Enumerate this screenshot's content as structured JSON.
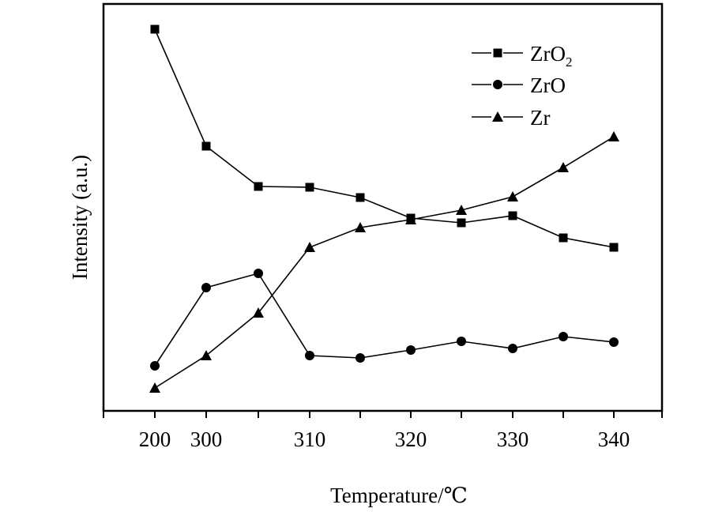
{
  "chart_data": {
    "type": "line",
    "title": "",
    "xlabel": "Temperature/℃",
    "ylabel": "Intensity (a.u.)",
    "categories": [
      "200",
      "300",
      "305",
      "310",
      "315",
      "320",
      "325",
      "330",
      "335",
      "340"
    ],
    "tick_labels": [
      "200",
      "300",
      "",
      "310",
      "",
      "320",
      "",
      "330",
      "",
      "340"
    ],
    "ylim": [
      0,
      103
    ],
    "grid": false,
    "legend_position": "top-right",
    "series": [
      {
        "name": "ZrO",
        "name_sub": "2",
        "marker": "square",
        "values": [
          96.6,
          67.0,
          56.8,
          56.6,
          54.0,
          48.8,
          47.6,
          49.4,
          43.8,
          41.4
        ]
      },
      {
        "name": "ZrO",
        "name_sub": "",
        "marker": "circle",
        "values": [
          11.4,
          31.2,
          34.8,
          14.0,
          13.4,
          15.4,
          17.6,
          15.8,
          18.8,
          17.4
        ]
      },
      {
        "name": "Zr",
        "name_sub": "",
        "marker": "triangle",
        "values": [
          5.8,
          14.0,
          24.8,
          41.4,
          46.4,
          48.4,
          50.8,
          54.2,
          61.6,
          69.4
        ]
      }
    ],
    "colors": {
      "line": "#000000",
      "background": "#ffffff"
    }
  }
}
